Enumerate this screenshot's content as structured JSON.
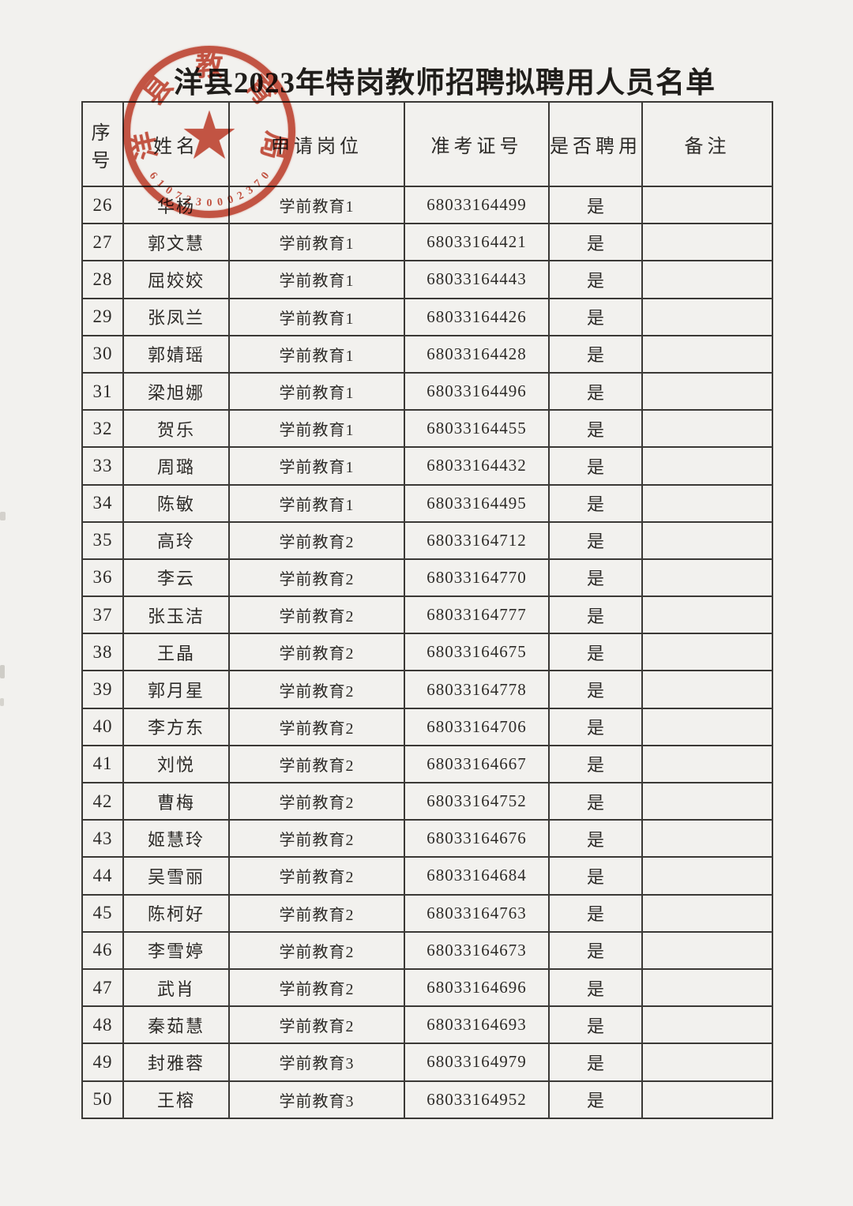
{
  "page": {
    "title": "洋县2023年特岗教师招聘拟聘用人员名单"
  },
  "stamp": {
    "org": "洋县教育局",
    "code": "6107230002370",
    "star": "★",
    "color": "#c84733"
  },
  "table": {
    "headers": [
      "序号",
      "姓名",
      "申请岗位",
      "准考证号",
      "是否聘用",
      "备注"
    ],
    "rows": [
      {
        "no": "26",
        "name": "华杨",
        "position": "学前教育1",
        "ticket": "68033164499",
        "hired": "是",
        "remark": ""
      },
      {
        "no": "27",
        "name": "郭文慧",
        "position": "学前教育1",
        "ticket": "68033164421",
        "hired": "是",
        "remark": ""
      },
      {
        "no": "28",
        "name": "屈姣姣",
        "position": "学前教育1",
        "ticket": "68033164443",
        "hired": "是",
        "remark": ""
      },
      {
        "no": "29",
        "name": "张凤兰",
        "position": "学前教育1",
        "ticket": "68033164426",
        "hired": "是",
        "remark": ""
      },
      {
        "no": "30",
        "name": "郭婧瑶",
        "position": "学前教育1",
        "ticket": "68033164428",
        "hired": "是",
        "remark": ""
      },
      {
        "no": "31",
        "name": "梁旭娜",
        "position": "学前教育1",
        "ticket": "68033164496",
        "hired": "是",
        "remark": ""
      },
      {
        "no": "32",
        "name": "贺乐",
        "position": "学前教育1",
        "ticket": "68033164455",
        "hired": "是",
        "remark": ""
      },
      {
        "no": "33",
        "name": "周璐",
        "position": "学前教育1",
        "ticket": "68033164432",
        "hired": "是",
        "remark": ""
      },
      {
        "no": "34",
        "name": "陈敏",
        "position": "学前教育1",
        "ticket": "68033164495",
        "hired": "是",
        "remark": ""
      },
      {
        "no": "35",
        "name": "高玲",
        "position": "学前教育2",
        "ticket": "68033164712",
        "hired": "是",
        "remark": ""
      },
      {
        "no": "36",
        "name": "李云",
        "position": "学前教育2",
        "ticket": "68033164770",
        "hired": "是",
        "remark": ""
      },
      {
        "no": "37",
        "name": "张玉洁",
        "position": "学前教育2",
        "ticket": "68033164777",
        "hired": "是",
        "remark": ""
      },
      {
        "no": "38",
        "name": "王晶",
        "position": "学前教育2",
        "ticket": "68033164675",
        "hired": "是",
        "remark": ""
      },
      {
        "no": "39",
        "name": "郭月星",
        "position": "学前教育2",
        "ticket": "68033164778",
        "hired": "是",
        "remark": ""
      },
      {
        "no": "40",
        "name": "李方东",
        "position": "学前教育2",
        "ticket": "68033164706",
        "hired": "是",
        "remark": ""
      },
      {
        "no": "41",
        "name": "刘悦",
        "position": "学前教育2",
        "ticket": "68033164667",
        "hired": "是",
        "remark": ""
      },
      {
        "no": "42",
        "name": "曹梅",
        "position": "学前教育2",
        "ticket": "68033164752",
        "hired": "是",
        "remark": ""
      },
      {
        "no": "43",
        "name": "姬慧玲",
        "position": "学前教育2",
        "ticket": "68033164676",
        "hired": "是",
        "remark": ""
      },
      {
        "no": "44",
        "name": "吴雪丽",
        "position": "学前教育2",
        "ticket": "68033164684",
        "hired": "是",
        "remark": ""
      },
      {
        "no": "45",
        "name": "陈柯好",
        "position": "学前教育2",
        "ticket": "68033164763",
        "hired": "是",
        "remark": ""
      },
      {
        "no": "46",
        "name": "李雪婷",
        "position": "学前教育2",
        "ticket": "68033164673",
        "hired": "是",
        "remark": ""
      },
      {
        "no": "47",
        "name": "武肖",
        "position": "学前教育2",
        "ticket": "68033164696",
        "hired": "是",
        "remark": ""
      },
      {
        "no": "48",
        "name": "秦茹慧",
        "position": "学前教育2",
        "ticket": "68033164693",
        "hired": "是",
        "remark": ""
      },
      {
        "no": "49",
        "name": "封雅蓉",
        "position": "学前教育3",
        "ticket": "68033164979",
        "hired": "是",
        "remark": ""
      },
      {
        "no": "50",
        "name": "王榕",
        "position": "学前教育3",
        "ticket": "68033164952",
        "hired": "是",
        "remark": ""
      }
    ]
  }
}
